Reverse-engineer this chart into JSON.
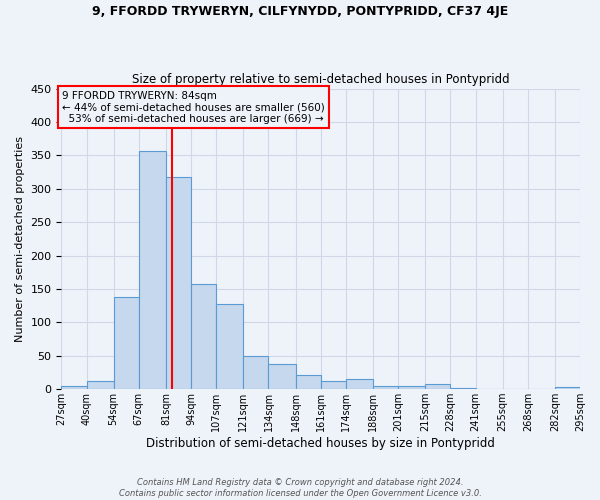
{
  "title": "9, FFORDD TRYWERYN, CILFYNYDD, PONTYPRIDD, CF37 4JE",
  "subtitle": "Size of property relative to semi-detached houses in Pontypridd",
  "xlabel": "Distribution of semi-detached houses by size in Pontypridd",
  "ylabel": "Number of semi-detached properties",
  "property_label": "9 FFORDD TRYWERYN: 84sqm",
  "pct_smaller": 44,
  "count_smaller": 560,
  "pct_larger": 53,
  "count_larger": 669,
  "bin_labels": [
    "27sqm",
    "40sqm",
    "54sqm",
    "67sqm",
    "81sqm",
    "94sqm",
    "107sqm",
    "121sqm",
    "134sqm",
    "148sqm",
    "161sqm",
    "174sqm",
    "188sqm",
    "201sqm",
    "215sqm",
    "228sqm",
    "241sqm",
    "255sqm",
    "268sqm",
    "282sqm",
    "295sqm"
  ],
  "bin_edges": [
    27,
    40,
    54,
    67,
    81,
    94,
    107,
    121,
    134,
    148,
    161,
    174,
    188,
    201,
    215,
    228,
    241,
    255,
    268,
    282,
    295
  ],
  "bar_heights": [
    5,
    12,
    138,
    357,
    317,
    158,
    127,
    50,
    38,
    21,
    12,
    15,
    5,
    5,
    7,
    2,
    0,
    0,
    0,
    3
  ],
  "bar_color": "#c5d8ed",
  "bar_edge_color": "#5b9bd5",
  "vline_x": 84,
  "vline_color": "red",
  "grid_color": "#d0d8e8",
  "bg_color": "#eef3fa",
  "annotation_box_color": "red",
  "ylim": [
    0,
    450
  ],
  "yticks": [
    0,
    50,
    100,
    150,
    200,
    250,
    300,
    350,
    400,
    450
  ],
  "footer1": "Contains HM Land Registry data © Crown copyright and database right 2024.",
  "footer2": "Contains public sector information licensed under the Open Government Licence v3.0."
}
